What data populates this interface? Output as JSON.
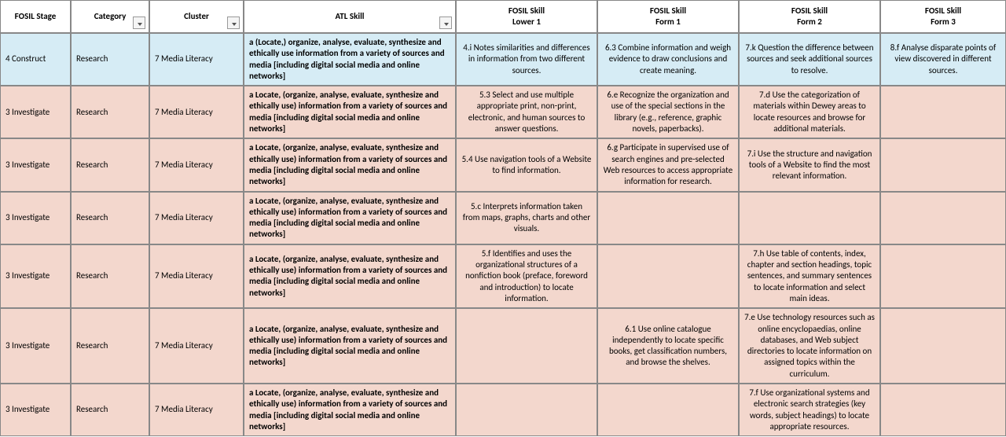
{
  "columns": [
    {
      "label": "FOSIL Stage",
      "filter": false
    },
    {
      "label": "Category",
      "filter": true
    },
    {
      "label": "Cluster",
      "filter": true
    },
    {
      "label": "ATL Skill",
      "filter": true
    },
    {
      "label": "FOSIL Skill\nLower 1",
      "filter": false
    },
    {
      "label": "FOSIL Skill\nForm 1",
      "filter": false
    },
    {
      "label": "FOSIL Skill\nForm 2",
      "filter": false
    },
    {
      "label": "FOSIL Skill\nForm 3",
      "filter": false
    }
  ],
  "rows": [
    {
      "color": "blue",
      "cells": [
        "4 Construct",
        "Research",
        "7 Media Literacy",
        "a (Locate,) organize, analyse, evaluate, synthesize and ethically use information from a variety of sources and media [including digital social media and online networks]",
        "4.i Notes similarities and differences in information from two different sources.",
        "6.3 Combine information and weigh evidence to draw conclusions and create meaning.",
        "7.k Question the difference between sources and seek additional sources to resolve.",
        "8.f Analyse disparate points of view discovered in different sources."
      ]
    },
    {
      "color": "peach",
      "cells": [
        "3 Investigate",
        "Research",
        "7 Media Literacy",
        "a Locate, (organize, analyse, evaluate, synthesize and ethically use) information from a variety of sources and media [including digital social media and online networks]",
        "5.3 Select and use multiple appropriate print, non-print, electronic, and human sources to answer questions.",
        "6.e Recognize the organization and use of the special sections in the library (e.g., reference, graphic novels, paperbacks).",
        "7.d Use the categorization of materials within Dewey areas to locate resources and browse for additional materials.",
        ""
      ]
    },
    {
      "color": "peach",
      "cells": [
        "3 Investigate",
        "Research",
        "7 Media Literacy",
        "a Locate, (organize, analyse, evaluate, synthesize and ethically use) information from a variety of sources and media [including digital social media and online networks]",
        "5.4 Use navigation tools of a Website to find information.",
        "6.g Participate in supervised use of search engines and pre-selected Web resources to access appropriate information for research.",
        "7.i Use the structure and navigation tools of a Website to find the most relevant information.",
        ""
      ]
    },
    {
      "color": "peach",
      "cells": [
        "3 Investigate",
        "Research",
        "7 Media Literacy",
        "a Locate, (organize, analyse, evaluate, synthesize and ethically use) information from a variety of sources and media [including digital social media and online networks]",
        "5.c Interprets information taken from maps, graphs, charts and other visuals.",
        "",
        "",
        ""
      ]
    },
    {
      "color": "peach",
      "cells": [
        "3 Investigate",
        "Research",
        "7 Media Literacy",
        "a Locate, (organize, analyse, evaluate, synthesize and ethically use) information from a variety of sources and media [including digital social media and online networks]",
        "5.f Identifies and uses the organizational structures of a nonfiction book (preface, foreword and introduction) to locate information.",
        "",
        "7.h Use table of contents, index, chapter and section headings, topic sentences, and summary sentences to locate information and select main ideas.",
        ""
      ]
    },
    {
      "color": "peach",
      "cells": [
        "3 Investigate",
        "Research",
        "7 Media Literacy",
        "a Locate, (organize, analyse, evaluate, synthesize and ethically use) information from a variety of sources and media [including digital social media and online networks]",
        "",
        "6.1 Use online catalogue independently to locate specific books, get classification numbers, and browse the shelves.",
        "7.e Use technology resources such as online encyclopaedias, online databases, and Web subject directories to locate information on assigned topics within the curriculum.",
        ""
      ]
    },
    {
      "color": "peach",
      "cells": [
        "3 Investigate",
        "Research",
        "7 Media Literacy",
        "a Locate, (organize, analyse, evaluate, synthesize and ethically use) information from a variety of sources and media [including digital social media and online networks]",
        "",
        "",
        "7.f Use organizational systems and electronic search strategies (key words, subject headings) to locate appropriate resources.",
        ""
      ]
    }
  ],
  "col_align": [
    "left",
    "left",
    "left",
    "left",
    "center",
    "center",
    "center",
    "center"
  ],
  "col_bold": [
    false,
    false,
    false,
    true,
    false,
    false,
    false,
    false
  ]
}
